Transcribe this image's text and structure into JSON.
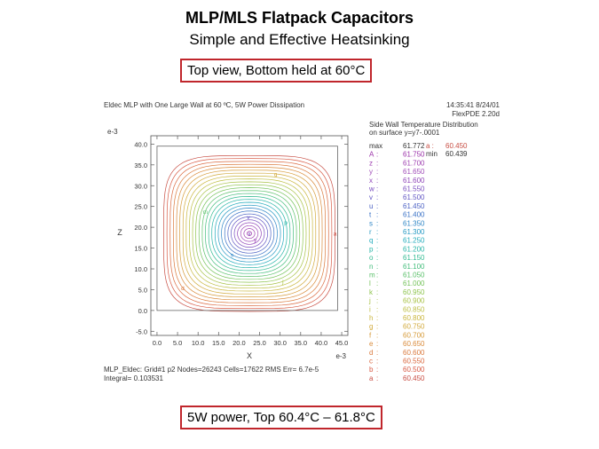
{
  "slide": {
    "title": "MLP/MLS Flatpack Capacitors",
    "subtitle": "Simple and Effective Heatsinking",
    "callout_top": "Top view, Bottom held at 60°C",
    "callout_bottom": "5W power, Top 60.4°C – 61.8°C"
  },
  "chart_data": {
    "type": "contour",
    "title": "Eldec MLP with One Large Wall at 60 ºC, 5W Power Dissipation",
    "timestamp": "14:35:41 8/24/01",
    "software": "FlexPDE 2.20d",
    "legend_title_1": "Side Wall Temperature Distribution",
    "legend_title_2": "on surface y=y7-.0001",
    "max_label": "max",
    "max_value": "61.772",
    "min_label": "min",
    "min_value": "60.439",
    "a_label": "a :",
    "a_value": "60.450",
    "xlabel": "X",
    "ylabel": "Z",
    "x_exponent": "e-3",
    "y_exponent": "e-3",
    "x_ticks": [
      "0.0",
      "5.0",
      "10.0",
      "15.0",
      "20.0",
      "25.0",
      "30.0",
      "35.0",
      "40.0",
      "45.0"
    ],
    "y_ticks": [
      "40.0",
      "35.0",
      "30.0",
      "25.0",
      "20.0",
      "15.0",
      "10.0",
      "5.0",
      "0.0",
      "-5.0"
    ],
    "xlim": [
      -1.5,
      46.5
    ],
    "ylim": [
      -6.0,
      42.0
    ],
    "domain": {
      "x": [
        0.0,
        44.0
      ],
      "z": [
        0.0,
        39.5
      ]
    },
    "center": [
      22.5,
      18.5
    ],
    "center_marker": "x",
    "levels": [
      {
        "label": "max",
        "value": "61.772",
        "color": "#000000"
      },
      {
        "label": "A",
        "value": "61.750",
        "color": "#9a2fa8"
      },
      {
        "label": "z",
        "value": "61.700",
        "color": "#9e3fb0"
      },
      {
        "label": "y",
        "value": "61.650",
        "color": "#a04cb8"
      },
      {
        "label": "x",
        "value": "61.600",
        "color": "#8f45b8"
      },
      {
        "label": "w",
        "value": "61.550",
        "color": "#7a4ec0"
      },
      {
        "label": "v",
        "value": "61.500",
        "color": "#6358c4"
      },
      {
        "label": "u",
        "value": "61.450",
        "color": "#4d62c4"
      },
      {
        "label": "t",
        "value": "61.400",
        "color": "#3a72c6"
      },
      {
        "label": "s",
        "value": "61.350",
        "color": "#2f86c6"
      },
      {
        "label": "r",
        "value": "61.300",
        "color": "#279ac4"
      },
      {
        "label": "q",
        "value": "61.250",
        "color": "#22abbc"
      },
      {
        "label": "p",
        "value": "61.200",
        "color": "#27b5a8"
      },
      {
        "label": "o",
        "value": "61.150",
        "color": "#33bb92"
      },
      {
        "label": "n",
        "value": "61.100",
        "color": "#44bd7c"
      },
      {
        "label": "m",
        "value": "61.050",
        "color": "#5ac06a"
      },
      {
        "label": "l",
        "value": "61.000",
        "color": "#74c25a"
      },
      {
        "label": "k",
        "value": "60.950",
        "color": "#8ec44e"
      },
      {
        "label": "j",
        "value": "60.900",
        "color": "#a8c246"
      },
      {
        "label": "i",
        "value": "60.850",
        "color": "#bdbe42"
      },
      {
        "label": "h",
        "value": "60.800",
        "color": "#cab63e"
      },
      {
        "label": "g",
        "value": "60.750",
        "color": "#d2aa3c"
      },
      {
        "label": "f",
        "value": "60.700",
        "color": "#d69b3a"
      },
      {
        "label": "e",
        "value": "60.650",
        "color": "#d98a3a"
      },
      {
        "label": "d",
        "value": "60.600",
        "color": "#da793c"
      },
      {
        "label": "c",
        "value": "60.550",
        "color": "#da683e"
      },
      {
        "label": "b",
        "value": "60.500",
        "color": "#d85a44"
      },
      {
        "label": "a",
        "value": "60.450",
        "color": "#c84e44"
      }
    ],
    "footer_line1": "MLP_Eldec:  Grid#1  p2  Nodes=26243 Cells=17622 RMS Err= 6.7e-5",
    "footer_line2": "Integral=  0.103531",
    "colors": {
      "accent": "#c0262c"
    }
  }
}
